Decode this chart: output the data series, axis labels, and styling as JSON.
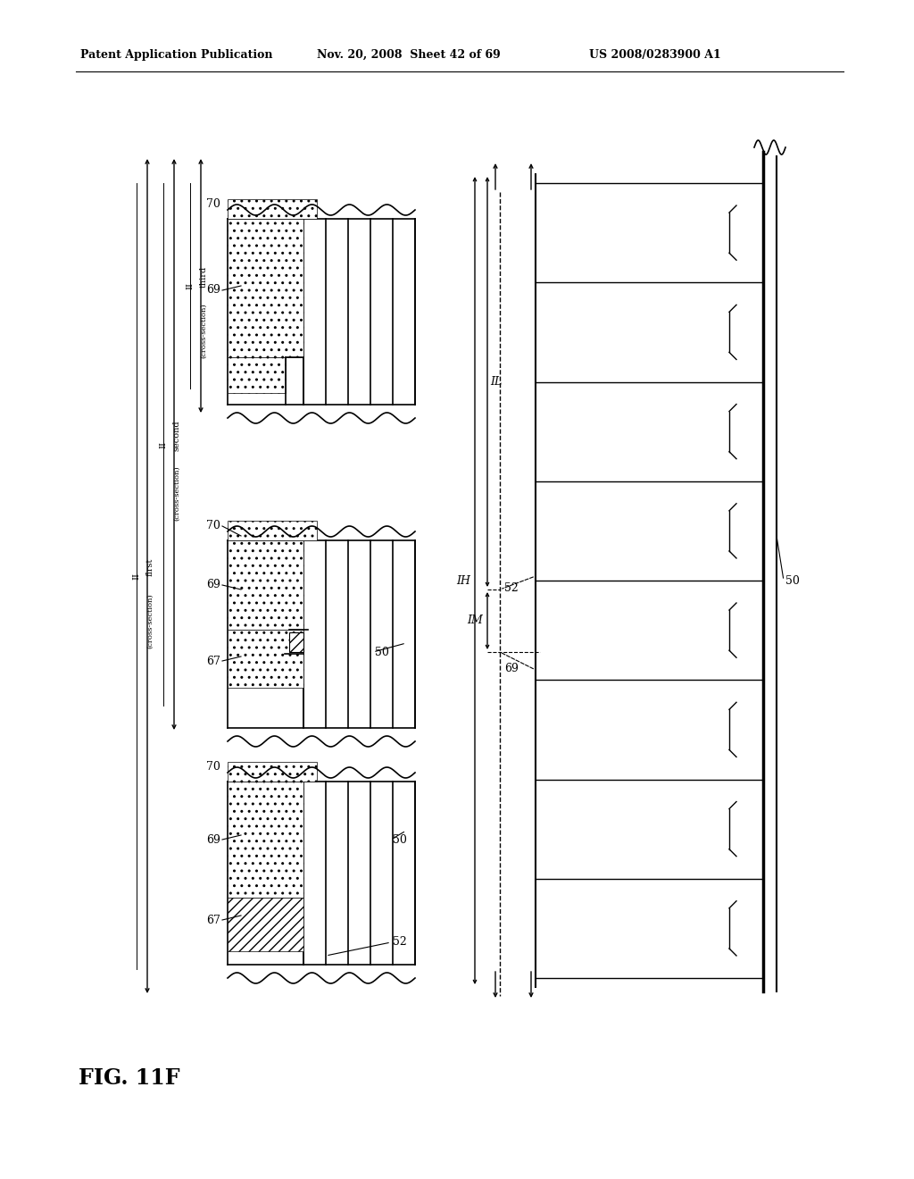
{
  "header_left": "Patent Application Publication",
  "header_mid": "Nov. 20, 2008  Sheet 42 of 69",
  "header_right": "US 2008/0283900 A1",
  "fig_label": "FIG. 11F",
  "bg_color": "#ffffff"
}
